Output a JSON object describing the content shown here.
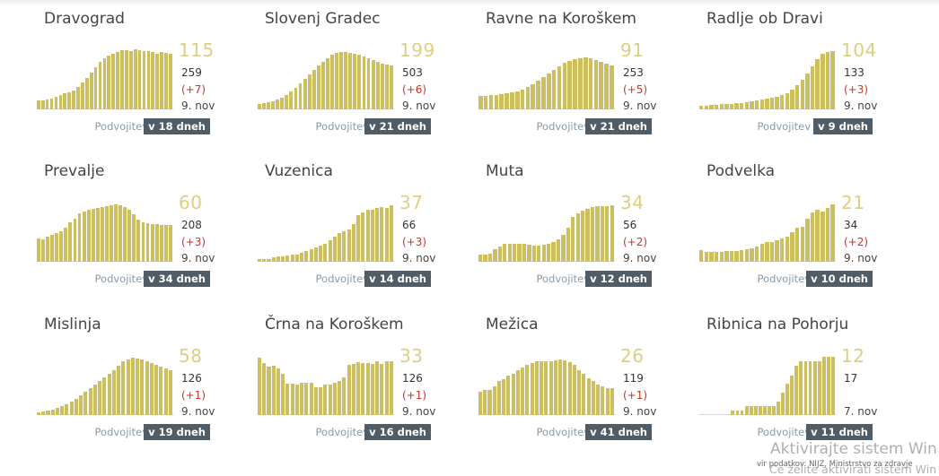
{
  "doubling_label": "Podvojitev",
  "bar_color": "#cdbf5d",
  "source_text": "vir podatkov: NIJZ, Ministrstvo za zdravje",
  "watermark": {
    "line1": "Aktivirajte sistem Win",
    "line2": "Če želite aktivirati sistem Win"
  },
  "municipalities": [
    {
      "name": "Dravograd",
      "active": "115",
      "total": "259",
      "delta": "(+7)",
      "date": "9. nov",
      "doubling": "v 18 dneh",
      "bars": [
        10,
        10,
        11,
        12,
        14,
        16,
        18,
        19,
        21,
        25,
        30,
        35,
        41,
        47,
        53,
        57,
        60,
        62,
        64,
        66,
        66,
        65,
        67,
        66,
        65,
        65,
        64,
        62,
        64,
        63,
        62
      ]
    },
    {
      "name": "Slovenj Gradec",
      "active": "199",
      "total": "503",
      "delta": "(+6)",
      "date": "9. nov",
      "doubling": "v 21 dneh",
      "bars": [
        6,
        7,
        8,
        9,
        11,
        13,
        16,
        20,
        24,
        29,
        34,
        39,
        44,
        49,
        53,
        57,
        61,
        63,
        64,
        64,
        63,
        62,
        61,
        59,
        57,
        55,
        53,
        51,
        50,
        49
      ]
    },
    {
      "name": "Ravne na Koroškem",
      "active": "91",
      "total": "253",
      "delta": "(+5)",
      "date": "9. nov",
      "doubling": "v 21 dneh",
      "bars": [
        15,
        15,
        16,
        16,
        17,
        18,
        19,
        20,
        22,
        25,
        28,
        32,
        36,
        40,
        44,
        48,
        52,
        54,
        56,
        57,
        58,
        57,
        55,
        53,
        51,
        49
      ]
    },
    {
      "name": "Radlje ob Dravi",
      "active": "104",
      "total": "133",
      "delta": "(+3)",
      "date": "9. nov",
      "doubling": "v 9 dneh",
      "bars": [
        4,
        4,
        5,
        5,
        6,
        6,
        6,
        7,
        7,
        8,
        9,
        10,
        11,
        12,
        13,
        14,
        16,
        18,
        22,
        27,
        33,
        40,
        48,
        56,
        62,
        64,
        65
      ]
    },
    {
      "name": "Prevalje",
      "active": "60",
      "total": "208",
      "delta": "(+3)",
      "date": "9. nov",
      "doubling": "v 34 dneh",
      "bars": [
        26,
        25,
        28,
        30,
        32,
        34,
        38,
        44,
        48,
        54,
        56,
        58,
        59,
        60,
        61,
        62,
        63,
        64,
        63,
        61,
        58,
        53,
        47,
        44,
        43,
        42,
        42,
        41,
        41,
        41
      ]
    },
    {
      "name": "Vuzenica",
      "active": "37",
      "total": "66",
      "delta": "(+3)",
      "date": "9. nov",
      "doubling": "v 14 dneh",
      "bars": [
        3,
        3,
        3,
        5,
        6,
        6,
        7,
        8,
        8,
        10,
        12,
        14,
        16,
        18,
        20,
        24,
        28,
        32,
        34,
        36,
        42,
        52,
        55,
        58,
        58,
        60,
        61,
        60,
        63
      ]
    },
    {
      "name": "Muta",
      "active": "34",
      "total": "56",
      "delta": "(+2)",
      "date": "9. nov",
      "doubling": "v 12 dneh",
      "bars": [
        8,
        8,
        9,
        14,
        17,
        20,
        20,
        20,
        20,
        20,
        19,
        18,
        18,
        19,
        20,
        22,
        25,
        30,
        38,
        50,
        54,
        57,
        59,
        61,
        62,
        62,
        62,
        63
      ]
    },
    {
      "name": "Podvelka",
      "active": "21",
      "total": "34",
      "delta": "(+2)",
      "date": "9. nov",
      "doubling": "v 10 dneh",
      "bars": [
        13,
        11,
        11,
        11,
        11,
        12,
        12,
        12,
        13,
        14,
        15,
        17,
        20,
        22,
        22,
        24,
        26,
        28,
        33,
        38,
        39,
        48,
        55,
        58,
        56,
        60,
        64
      ]
    },
    {
      "name": "Mislinja",
      "active": "58",
      "total": "126",
      "delta": "(+1)",
      "date": "9. nov",
      "doubling": "v 19 dneh",
      "bars": [
        3,
        4,
        5,
        6,
        8,
        10,
        12,
        15,
        18,
        22,
        26,
        30,
        34,
        38,
        42,
        46,
        50,
        55,
        60,
        62,
        64,
        63,
        62,
        60,
        58,
        56,
        54,
        52,
        50
      ]
    },
    {
      "name": "Črna na Koroškem",
      "active": "33",
      "total": "126",
      "delta": "(+1)",
      "date": "9. nov",
      "doubling": "v 16 dneh",
      "bars": [
        64,
        58,
        54,
        55,
        52,
        46,
        35,
        35,
        34,
        36,
        36,
        36,
        31,
        31,
        34,
        34,
        36,
        38,
        42,
        56,
        57,
        59,
        58,
        58,
        57,
        60,
        57,
        60,
        60
      ]
    },
    {
      "name": "Mežica",
      "active": "26",
      "total": "119",
      "delta": "(+1)",
      "date": "9. nov",
      "doubling": "v 41 dneh",
      "bars": [
        26,
        28,
        28,
        32,
        38,
        40,
        44,
        46,
        50,
        53,
        56,
        58,
        60,
        60,
        60,
        60,
        61,
        62,
        61,
        59,
        56,
        50,
        46,
        41,
        38,
        34,
        32,
        30,
        30
      ]
    },
    {
      "name": "Ribnica na Pohorju",
      "active": "12",
      "total": "17",
      "delta": "",
      "date": "7. nov",
      "doubling": "v 11 dneh",
      "bars": [
        0,
        0,
        0,
        0,
        0,
        0,
        0,
        5,
        5,
        5,
        10,
        10,
        10,
        10,
        10,
        10,
        10,
        15,
        25,
        35,
        44,
        55,
        60,
        60,
        60,
        60,
        60,
        65,
        65,
        65
      ]
    }
  ]
}
